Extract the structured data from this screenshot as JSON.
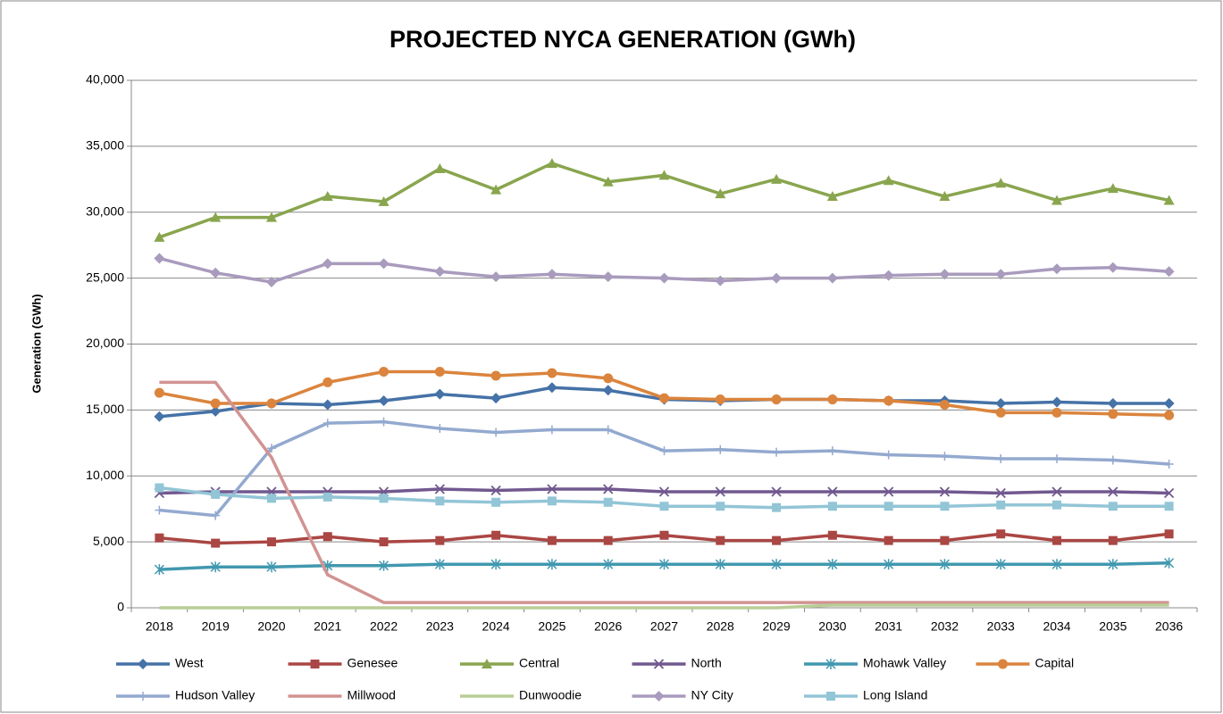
{
  "chart_data": {
    "type": "line",
    "title": "PROJECTED NYCA GENERATION (GWh)",
    "y_label": "Generation (GWh)",
    "categories": [
      "2018",
      "2019",
      "2020",
      "2021",
      "2022",
      "2023",
      "2024",
      "2025",
      "2026",
      "2027",
      "2028",
      "2029",
      "2030",
      "2031",
      "2032",
      "2033",
      "2034",
      "2035",
      "2036"
    ],
    "ylim": [
      0,
      40000
    ],
    "yticks": [
      0,
      {
        "value": 5000,
        "label": "5,000"
      },
      {
        "value": 10000,
        "label": "10,000"
      },
      {
        "value": 15000,
        "label": "15,000"
      },
      {
        "value": 20000,
        "label": "20,000"
      },
      {
        "value": 25000,
        "label": "25,000"
      },
      {
        "value": 30000,
        "label": "30,000"
      },
      {
        "value": 35000,
        "label": "35,000"
      },
      {
        "value": 40000,
        "label": "40,000"
      }
    ],
    "grid": true,
    "legend": "bottom",
    "series": [
      {
        "name": "West",
        "color": "#4572a7",
        "marker": "diamond",
        "values": [
          14500,
          14900,
          15500,
          15400,
          15700,
          16200,
          15900,
          16700,
          16500,
          15800,
          15700,
          15800,
          15800,
          15700,
          15700,
          15500,
          15600,
          15500,
          15500
        ]
      },
      {
        "name": "Genesee",
        "color": "#aa4643",
        "marker": "square",
        "values": [
          5300,
          4900,
          5000,
          5400,
          5000,
          5100,
          5500,
          5100,
          5100,
          5500,
          5100,
          5100,
          5500,
          5100,
          5100,
          5600,
          5100,
          5100,
          5600
        ]
      },
      {
        "name": "Central",
        "color": "#89a54e",
        "marker": "triangle",
        "values": [
          28100,
          29600,
          29600,
          31200,
          30800,
          33300,
          31700,
          33700,
          32300,
          32800,
          31400,
          32500,
          31200,
          32400,
          31200,
          32200,
          30900,
          31800,
          30900
        ]
      },
      {
        "name": "North",
        "color": "#71588f",
        "marker": "x",
        "values": [
          8700,
          8800,
          8800,
          8800,
          8800,
          9000,
          8900,
          9000,
          9000,
          8800,
          8800,
          8800,
          8800,
          8800,
          8800,
          8700,
          8800,
          8800,
          8700
        ]
      },
      {
        "name": "Mohawk Valley",
        "color": "#4198af",
        "marker": "star",
        "values": [
          2900,
          3100,
          3100,
          3200,
          3200,
          3300,
          3300,
          3300,
          3300,
          3300,
          3300,
          3300,
          3300,
          3300,
          3300,
          3300,
          3300,
          3300,
          3400
        ]
      },
      {
        "name": "Capital",
        "color": "#db843d",
        "marker": "circle",
        "values": [
          16300,
          15500,
          15500,
          17100,
          17900,
          17900,
          17600,
          17800,
          17400,
          15900,
          15800,
          15800,
          15800,
          15700,
          15400,
          14800,
          14800,
          14700,
          14600
        ]
      },
      {
        "name": "Hudson Valley",
        "color": "#93a9cf",
        "marker": "plus",
        "values": [
          7400,
          7000,
          12100,
          14000,
          14100,
          13600,
          13300,
          13500,
          13500,
          11900,
          12000,
          11800,
          11900,
          11600,
          11500,
          11300,
          11300,
          11200,
          10900
        ]
      },
      {
        "name": "Millwood",
        "color": "#d19392",
        "marker": "none",
        "values": [
          17100,
          17100,
          11400,
          2500,
          400,
          400,
          400,
          400,
          400,
          400,
          400,
          400,
          400,
          400,
          400,
          400,
          400,
          400,
          400
        ]
      },
      {
        "name": "Dunwoodie",
        "color": "#b9cd96",
        "marker": "none",
        "values": [
          0,
          0,
          0,
          0,
          0,
          0,
          0,
          0,
          0,
          0,
          0,
          0,
          200,
          200,
          200,
          200,
          200,
          200,
          200
        ]
      },
      {
        "name": "NY City",
        "color": "#a99bbd",
        "marker": "diamond",
        "values": [
          26500,
          25400,
          24700,
          26100,
          26100,
          25500,
          25100,
          25300,
          25100,
          25000,
          24800,
          25000,
          25000,
          25200,
          25300,
          25300,
          25700,
          25800,
          25500
        ]
      },
      {
        "name": "Long Island",
        "color": "#92c5d6",
        "marker": "square",
        "values": [
          9100,
          8600,
          8300,
          8400,
          8300,
          8100,
          8000,
          8100,
          8000,
          7700,
          7700,
          7600,
          7700,
          7700,
          7700,
          7800,
          7800,
          7700,
          7700
        ]
      }
    ]
  }
}
